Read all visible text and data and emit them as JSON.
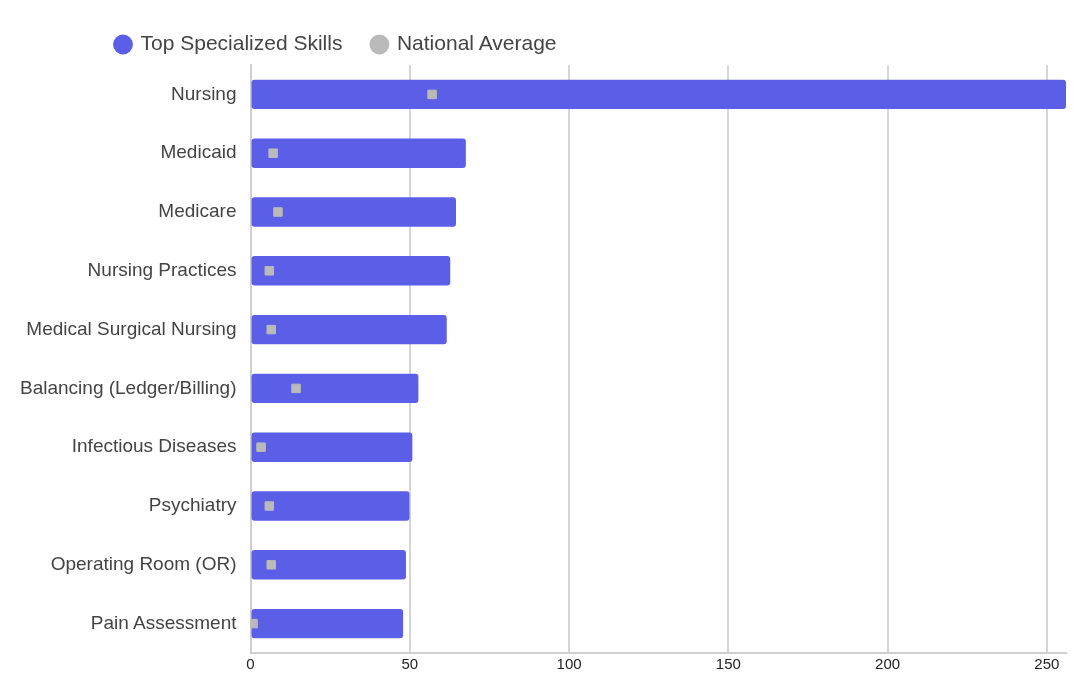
{
  "chart_data": {
    "type": "bar",
    "orientation": "horizontal",
    "categories": [
      "Nursing",
      "Medicaid",
      "Medicare",
      "Nursing Practices",
      "Medical Surgical Nursing",
      "Balancing (Ledger/Billing)",
      "Infectious Diseases",
      "Psychiatry",
      "Operating Room (OR)",
      "Pain Assessment"
    ],
    "series": [
      {
        "name": "Top Specialized Skills",
        "color": "#5b5ee6",
        "values": [
          256,
          67.6,
          64.5,
          62.7,
          61.6,
          52.7,
          50.8,
          49.9,
          48.8,
          47.9
        ]
      },
      {
        "name": "National Average",
        "type": "scatter",
        "color": "#bababa",
        "values": [
          57,
          7.1,
          8.6,
          5.9,
          6.5,
          14.3,
          3.3,
          5.9,
          6.5,
          0.8
        ]
      }
    ],
    "xlim": [
      0,
      256
    ],
    "xticks": [
      0,
      50,
      100,
      150,
      200,
      250
    ],
    "grid": "x",
    "legend": "top",
    "marker": "square"
  }
}
